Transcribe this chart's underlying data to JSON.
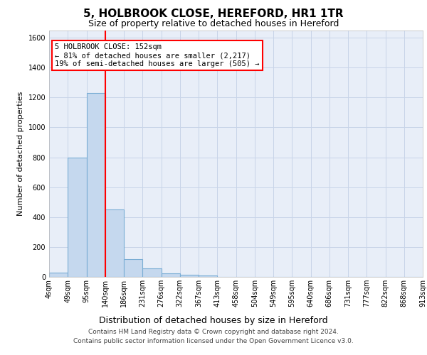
{
  "title1": "5, HOLBROOK CLOSE, HEREFORD, HR1 1TR",
  "title2": "Size of property relative to detached houses in Hereford",
  "xlabel": "Distribution of detached houses by size in Hereford",
  "ylabel": "Number of detached properties",
  "bar_values": [
    30,
    800,
    1230,
    450,
    120,
    55,
    25,
    15,
    10,
    0,
    0,
    0,
    0,
    0,
    0,
    0,
    0,
    0,
    0,
    0
  ],
  "bar_labels": [
    "4sqm",
    "49sqm",
    "95sqm",
    "140sqm",
    "186sqm",
    "231sqm",
    "276sqm",
    "322sqm",
    "367sqm",
    "413sqm",
    "458sqm",
    "504sqm",
    "549sqm",
    "595sqm",
    "640sqm",
    "686sqm",
    "731sqm",
    "777sqm",
    "822sqm",
    "868sqm",
    "913sqm"
  ],
  "bar_color": "#c5d8ee",
  "bar_edge_color": "#7aadd4",
  "grid_color": "#c8d4e8",
  "property_line_x": 3.0,
  "annotation_line1": "5 HOLBROOK CLOSE: 152sqm",
  "annotation_line2": "← 81% of detached houses are smaller (2,217)",
  "annotation_line3": "19% of semi-detached houses are larger (505) →",
  "ylim_max": 1650,
  "yticks": [
    0,
    200,
    400,
    600,
    800,
    1000,
    1200,
    1400,
    1600
  ],
  "footer_line1": "Contains HM Land Registry data © Crown copyright and database right 2024.",
  "footer_line2": "Contains public sector information licensed under the Open Government Licence v3.0.",
  "bg_color": "#e8eef8",
  "title1_fontsize": 11,
  "title2_fontsize": 9,
  "xlabel_fontsize": 9,
  "ylabel_fontsize": 8,
  "tick_fontsize": 7,
  "annot_fontsize": 7.5,
  "footer_fontsize": 6.5
}
